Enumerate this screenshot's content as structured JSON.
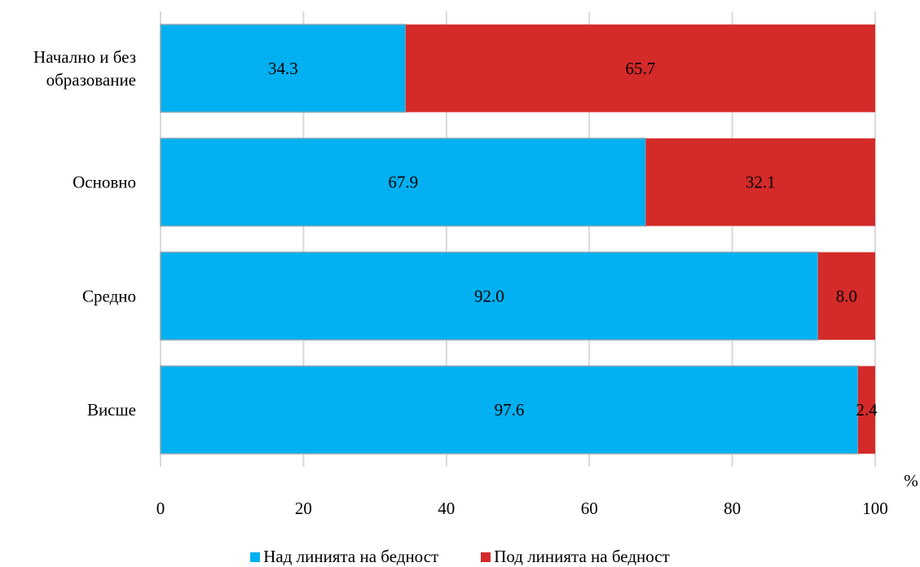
{
  "chart_data": {
    "type": "bar",
    "orientation": "horizontal",
    "stacked": true,
    "categories": [
      [
        "Начално и без",
        "образование"
      ],
      [
        "Основно"
      ],
      [
        "Средно"
      ],
      [
        "Висше"
      ]
    ],
    "series": [
      {
        "name": "Над линията на бедност",
        "color": "#00b0f0",
        "values": [
          34.3,
          67.9,
          92.0,
          97.6
        ],
        "labels": [
          "34.3",
          "67.9",
          "92.0",
          "97.6"
        ]
      },
      {
        "name": "Под линията на бедност",
        "color": "#d42a2a",
        "values": [
          65.7,
          32.1,
          8.0,
          2.4
        ],
        "labels": [
          "65.7",
          "32.1",
          "8.0",
          "2.4"
        ]
      }
    ],
    "xlim": [
      0,
      100
    ],
    "x_ticks": [
      "0",
      "20",
      "40",
      "60",
      "80",
      "100"
    ],
    "unit": "%",
    "grid": "vertical",
    "legend_position": "bottom"
  }
}
